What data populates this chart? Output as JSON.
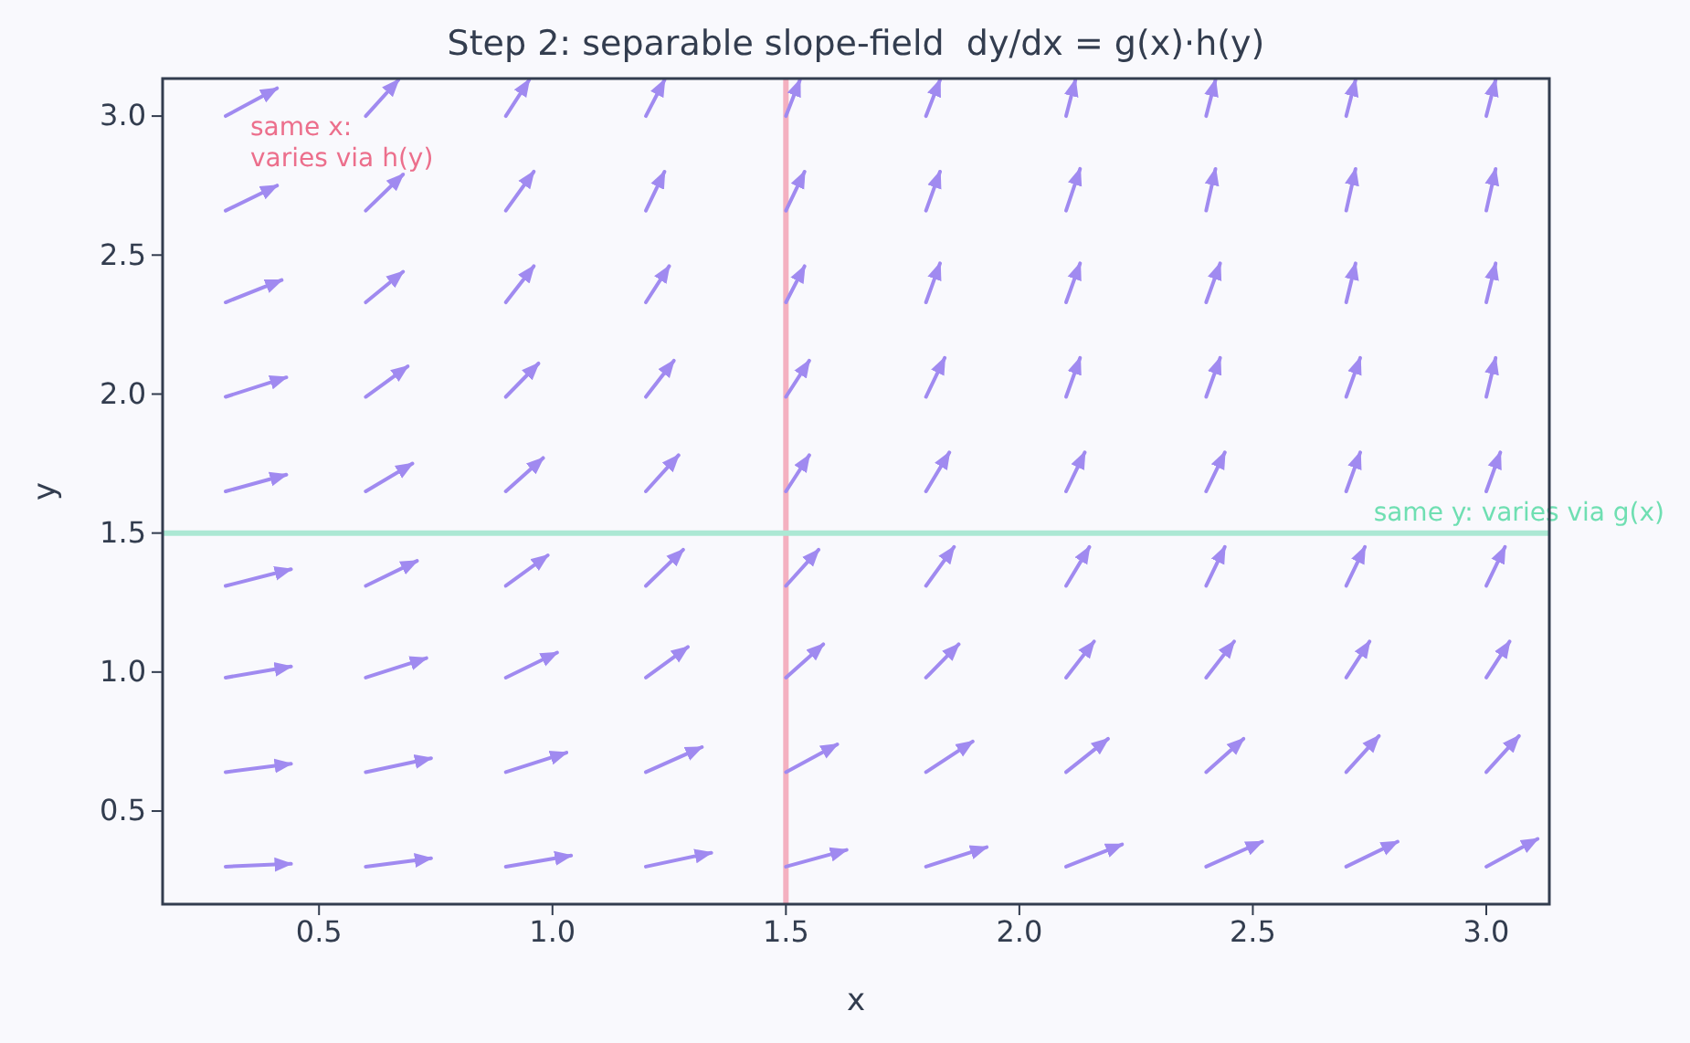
{
  "chart_data": {
    "type": "line",
    "title": "Step 2: separable slope-field  dy/dx = g(x)·h(y)",
    "xlabel": "x",
    "ylabel": "y",
    "xlim": [
      0.165,
      3.135
    ],
    "ylim": [
      0.165,
      3.135
    ],
    "xticks": [
      0.5,
      {
        "value": 1,
        "label": "1.0"
      },
      1.5,
      {
        "value": 2,
        "label": "2.0"
      },
      2.5,
      {
        "value": 3,
        "label": "3.0"
      }
    ],
    "yticks": [
      0.5,
      {
        "value": 1,
        "label": "1.0"
      },
      1.5,
      {
        "value": 2,
        "label": "2.0"
      },
      2.5,
      {
        "value": 3,
        "label": "3.0"
      }
    ],
    "grid": false,
    "annotations": [
      "same x:\nvaries via h(y)"
    ],
    "ref_lines": [
      {
        "axis": "x",
        "value": 1.5,
        "color": "#f4b0c0"
      },
      {
        "axis": "y",
        "value": 1.5,
        "label": "same y: varies via g(x)",
        "color": "#ace8d4"
      }
    ],
    "series": [
      {
        "color": "#a08af0",
        "x": [
          0.3,
          0.44
        ],
        "values": [
          0.3,
          0.31
        ]
      },
      {
        "color": "#a08af0",
        "x": [
          0.6,
          0.74
        ],
        "values": [
          0.3,
          0.33
        ]
      },
      {
        "color": "#a08af0",
        "x": [
          0.9,
          1.04
        ],
        "values": [
          0.3,
          0.34
        ]
      },
      {
        "color": "#a08af0",
        "x": [
          1.2,
          1.34
        ],
        "values": [
          0.3,
          0.35
        ]
      },
      {
        "color": "#a08af0",
        "x": [
          1.5,
          1.63
        ],
        "values": [
          0.3,
          0.36
        ]
      },
      {
        "color": "#a08af0",
        "x": [
          1.8,
          1.93
        ],
        "values": [
          0.3,
          0.37
        ]
      },
      {
        "color": "#a08af0",
        "x": [
          2.1,
          2.22
        ],
        "values": [
          0.3,
          0.38
        ]
      },
      {
        "color": "#a08af0",
        "x": [
          2.4,
          2.52
        ],
        "values": [
          0.3,
          0.39
        ]
      },
      {
        "color": "#a08af0",
        "x": [
          2.7,
          2.81
        ],
        "values": [
          0.3,
          0.39
        ]
      },
      {
        "color": "#a08af0",
        "x": [
          3.0,
          3.11
        ],
        "values": [
          0.3,
          0.4
        ]
      },
      {
        "color": "#a08af0",
        "x": [
          0.3,
          0.44
        ],
        "values": [
          0.64,
          0.67
        ]
      },
      {
        "color": "#a08af0",
        "x": [
          0.6,
          0.74
        ],
        "values": [
          0.64,
          0.69
        ]
      },
      {
        "color": "#a08af0",
        "x": [
          0.9,
          1.03
        ],
        "values": [
          0.64,
          0.71
        ]
      },
      {
        "color": "#a08af0",
        "x": [
          1.2,
          1.32
        ],
        "values": [
          0.64,
          0.73
        ]
      },
      {
        "color": "#a08af0",
        "x": [
          1.5,
          1.61
        ],
        "values": [
          0.64,
          0.74
        ]
      },
      {
        "color": "#a08af0",
        "x": [
          1.8,
          1.9
        ],
        "values": [
          0.64,
          0.75
        ]
      },
      {
        "color": "#a08af0",
        "x": [
          2.1,
          2.19
        ],
        "values": [
          0.64,
          0.76
        ]
      },
      {
        "color": "#a08af0",
        "x": [
          2.4,
          2.48
        ],
        "values": [
          0.64,
          0.76
        ]
      },
      {
        "color": "#a08af0",
        "x": [
          2.7,
          2.77
        ],
        "values": [
          0.64,
          0.77
        ]
      },
      {
        "color": "#a08af0",
        "x": [
          3.0,
          3.07
        ],
        "values": [
          0.64,
          0.77
        ]
      },
      {
        "color": "#a08af0",
        "x": [
          0.3,
          0.44
        ],
        "values": [
          0.98,
          1.02
        ]
      },
      {
        "color": "#a08af0",
        "x": [
          0.6,
          0.73
        ],
        "values": [
          0.98,
          1.05
        ]
      },
      {
        "color": "#a08af0",
        "x": [
          0.9,
          1.01
        ],
        "values": [
          0.98,
          1.07
        ]
      },
      {
        "color": "#a08af0",
        "x": [
          1.2,
          1.29
        ],
        "values": [
          0.98,
          1.09
        ]
      },
      {
        "color": "#a08af0",
        "x": [
          1.5,
          1.58
        ],
        "values": [
          0.98,
          1.1
        ]
      },
      {
        "color": "#a08af0",
        "x": [
          1.8,
          1.87
        ],
        "values": [
          0.98,
          1.1
        ]
      },
      {
        "color": "#a08af0",
        "x": [
          2.1,
          2.16
        ],
        "values": [
          0.98,
          1.11
        ]
      },
      {
        "color": "#a08af0",
        "x": [
          2.4,
          2.46
        ],
        "values": [
          0.98,
          1.11
        ]
      },
      {
        "color": "#a08af0",
        "x": [
          2.7,
          2.75
        ],
        "values": [
          0.98,
          1.11
        ]
      },
      {
        "color": "#a08af0",
        "x": [
          3.0,
          3.05
        ],
        "values": [
          0.98,
          1.11
        ]
      },
      {
        "color": "#a08af0",
        "x": [
          0.3,
          0.44
        ],
        "values": [
          1.31,
          1.37
        ]
      },
      {
        "color": "#a08af0",
        "x": [
          0.6,
          0.71
        ],
        "values": [
          1.31,
          1.4
        ]
      },
      {
        "color": "#a08af0",
        "x": [
          0.9,
          0.99
        ],
        "values": [
          1.31,
          1.42
        ]
      },
      {
        "color": "#a08af0",
        "x": [
          1.2,
          1.28
        ],
        "values": [
          1.31,
          1.44
        ]
      },
      {
        "color": "#a08af0",
        "x": [
          1.5,
          1.57
        ],
        "values": [
          1.31,
          1.44
        ]
      },
      {
        "color": "#a08af0",
        "x": [
          1.8,
          1.86
        ],
        "values": [
          1.31,
          1.45
        ]
      },
      {
        "color": "#a08af0",
        "x": [
          2.1,
          2.15
        ],
        "values": [
          1.31,
          1.45
        ]
      },
      {
        "color": "#a08af0",
        "x": [
          2.4,
          2.44
        ],
        "values": [
          1.31,
          1.45
        ]
      },
      {
        "color": "#a08af0",
        "x": [
          2.7,
          2.74
        ],
        "values": [
          1.31,
          1.45
        ]
      },
      {
        "color": "#a08af0",
        "x": [
          3.0,
          3.04
        ],
        "values": [
          1.31,
          1.45
        ]
      },
      {
        "color": "#a08af0",
        "x": [
          0.3,
          0.43
        ],
        "values": [
          1.65,
          1.71
        ]
      },
      {
        "color": "#a08af0",
        "x": [
          0.6,
          0.7
        ],
        "values": [
          1.65,
          1.75
        ]
      },
      {
        "color": "#a08af0",
        "x": [
          0.9,
          0.98
        ],
        "values": [
          1.65,
          1.77
        ]
      },
      {
        "color": "#a08af0",
        "x": [
          1.2,
          1.27
        ],
        "values": [
          1.65,
          1.78
        ]
      },
      {
        "color": "#a08af0",
        "x": [
          1.5,
          1.55
        ],
        "values": [
          1.65,
          1.78
        ]
      },
      {
        "color": "#a08af0",
        "x": [
          1.8,
          1.85
        ],
        "values": [
          1.65,
          1.79
        ]
      },
      {
        "color": "#a08af0",
        "x": [
          2.1,
          2.14
        ],
        "values": [
          1.65,
          1.79
        ]
      },
      {
        "color": "#a08af0",
        "x": [
          2.4,
          2.44
        ],
        "values": [
          1.65,
          1.79
        ]
      },
      {
        "color": "#a08af0",
        "x": [
          2.7,
          2.73
        ],
        "values": [
          1.65,
          1.79
        ]
      },
      {
        "color": "#a08af0",
        "x": [
          3.0,
          3.03
        ],
        "values": [
          1.65,
          1.79
        ]
      },
      {
        "color": "#a08af0",
        "x": [
          0.3,
          0.43
        ],
        "values": [
          1.99,
          2.06
        ]
      },
      {
        "color": "#a08af0",
        "x": [
          0.6,
          0.69
        ],
        "values": [
          1.99,
          2.1
        ]
      },
      {
        "color": "#a08af0",
        "x": [
          0.9,
          0.97
        ],
        "values": [
          1.99,
          2.11
        ]
      },
      {
        "color": "#a08af0",
        "x": [
          1.2,
          1.26
        ],
        "values": [
          1.99,
          2.12
        ]
      },
      {
        "color": "#a08af0",
        "x": [
          1.5,
          1.55
        ],
        "values": [
          1.99,
          2.12
        ]
      },
      {
        "color": "#a08af0",
        "x": [
          1.8,
          1.84
        ],
        "values": [
          1.99,
          2.13
        ]
      },
      {
        "color": "#a08af0",
        "x": [
          2.1,
          2.13
        ],
        "values": [
          1.99,
          2.13
        ]
      },
      {
        "color": "#a08af0",
        "x": [
          2.4,
          2.43
        ],
        "values": [
          1.99,
          2.13
        ]
      },
      {
        "color": "#a08af0",
        "x": [
          2.7,
          2.73
        ],
        "values": [
          1.99,
          2.13
        ]
      },
      {
        "color": "#a08af0",
        "x": [
          3.0,
          3.02
        ],
        "values": [
          1.99,
          2.13
        ]
      },
      {
        "color": "#a08af0",
        "x": [
          0.3,
          0.42
        ],
        "values": [
          2.33,
          2.41
        ]
      },
      {
        "color": "#a08af0",
        "x": [
          0.6,
          0.68
        ],
        "values": [
          2.33,
          2.44
        ]
      },
      {
        "color": "#a08af0",
        "x": [
          0.9,
          0.96
        ],
        "values": [
          2.33,
          2.46
        ]
      },
      {
        "color": "#a08af0",
        "x": [
          1.2,
          1.25
        ],
        "values": [
          2.33,
          2.46
        ]
      },
      {
        "color": "#a08af0",
        "x": [
          1.5,
          1.54
        ],
        "values": [
          2.33,
          2.46
        ]
      },
      {
        "color": "#a08af0",
        "x": [
          1.8,
          1.83
        ],
        "values": [
          2.33,
          2.47
        ]
      },
      {
        "color": "#a08af0",
        "x": [
          2.1,
          2.13
        ],
        "values": [
          2.33,
          2.47
        ]
      },
      {
        "color": "#a08af0",
        "x": [
          2.4,
          2.43
        ],
        "values": [
          2.33,
          2.47
        ]
      },
      {
        "color": "#a08af0",
        "x": [
          2.7,
          2.72
        ],
        "values": [
          2.33,
          2.47
        ]
      },
      {
        "color": "#a08af0",
        "x": [
          3.0,
          3.02
        ],
        "values": [
          2.33,
          2.47
        ]
      },
      {
        "color": "#a08af0",
        "x": [
          0.3,
          0.41
        ],
        "values": [
          2.66,
          2.75
        ]
      },
      {
        "color": "#a08af0",
        "x": [
          0.6,
          0.68
        ],
        "values": [
          2.66,
          2.79
        ]
      },
      {
        "color": "#a08af0",
        "x": [
          0.9,
          0.96
        ],
        "values": [
          2.66,
          2.8
        ]
      },
      {
        "color": "#a08af0",
        "x": [
          1.2,
          1.24
        ],
        "values": [
          2.66,
          2.8
        ]
      },
      {
        "color": "#a08af0",
        "x": [
          1.5,
          1.54
        ],
        "values": [
          2.66,
          2.8
        ]
      },
      {
        "color": "#a08af0",
        "x": [
          1.8,
          1.83
        ],
        "values": [
          2.66,
          2.8
        ]
      },
      {
        "color": "#a08af0",
        "x": [
          2.1,
          2.13
        ],
        "values": [
          2.66,
          2.81
        ]
      },
      {
        "color": "#a08af0",
        "x": [
          2.4,
          2.42
        ],
        "values": [
          2.66,
          2.81
        ]
      },
      {
        "color": "#a08af0",
        "x": [
          2.7,
          2.72
        ],
        "values": [
          2.66,
          2.81
        ]
      },
      {
        "color": "#a08af0",
        "x": [
          3.0,
          3.02
        ],
        "values": [
          2.66,
          2.81
        ]
      },
      {
        "color": "#a08af0",
        "x": [
          0.3,
          0.41
        ],
        "values": [
          3.0,
          3.1
        ]
      },
      {
        "color": "#a08af0",
        "x": [
          0.6,
          0.67
        ],
        "values": [
          3.0,
          3.13
        ]
      },
      {
        "color": "#a08af0",
        "x": [
          0.9,
          0.95
        ],
        "values": [
          3.0,
          3.13
        ]
      },
      {
        "color": "#a08af0",
        "x": [
          1.2,
          1.24
        ],
        "values": [
          3.0,
          3.13
        ]
      },
      {
        "color": "#a08af0",
        "x": [
          1.5,
          1.53
        ],
        "values": [
          3.0,
          3.13
        ]
      },
      {
        "color": "#a08af0",
        "x": [
          1.8,
          1.83
        ],
        "values": [
          3.0,
          3.13
        ]
      },
      {
        "color": "#a08af0",
        "x": [
          2.1,
          2.12
        ],
        "values": [
          3.0,
          3.13
        ]
      },
      {
        "color": "#a08af0",
        "x": [
          2.4,
          2.42
        ],
        "values": [
          3.0,
          3.13
        ]
      },
      {
        "color": "#a08af0",
        "x": [
          2.7,
          2.72
        ],
        "values": [
          3.0,
          3.13
        ]
      },
      {
        "color": "#a08af0",
        "x": [
          3.0,
          3.02
        ],
        "values": [
          3.0,
          3.13
        ]
      }
    ]
  }
}
